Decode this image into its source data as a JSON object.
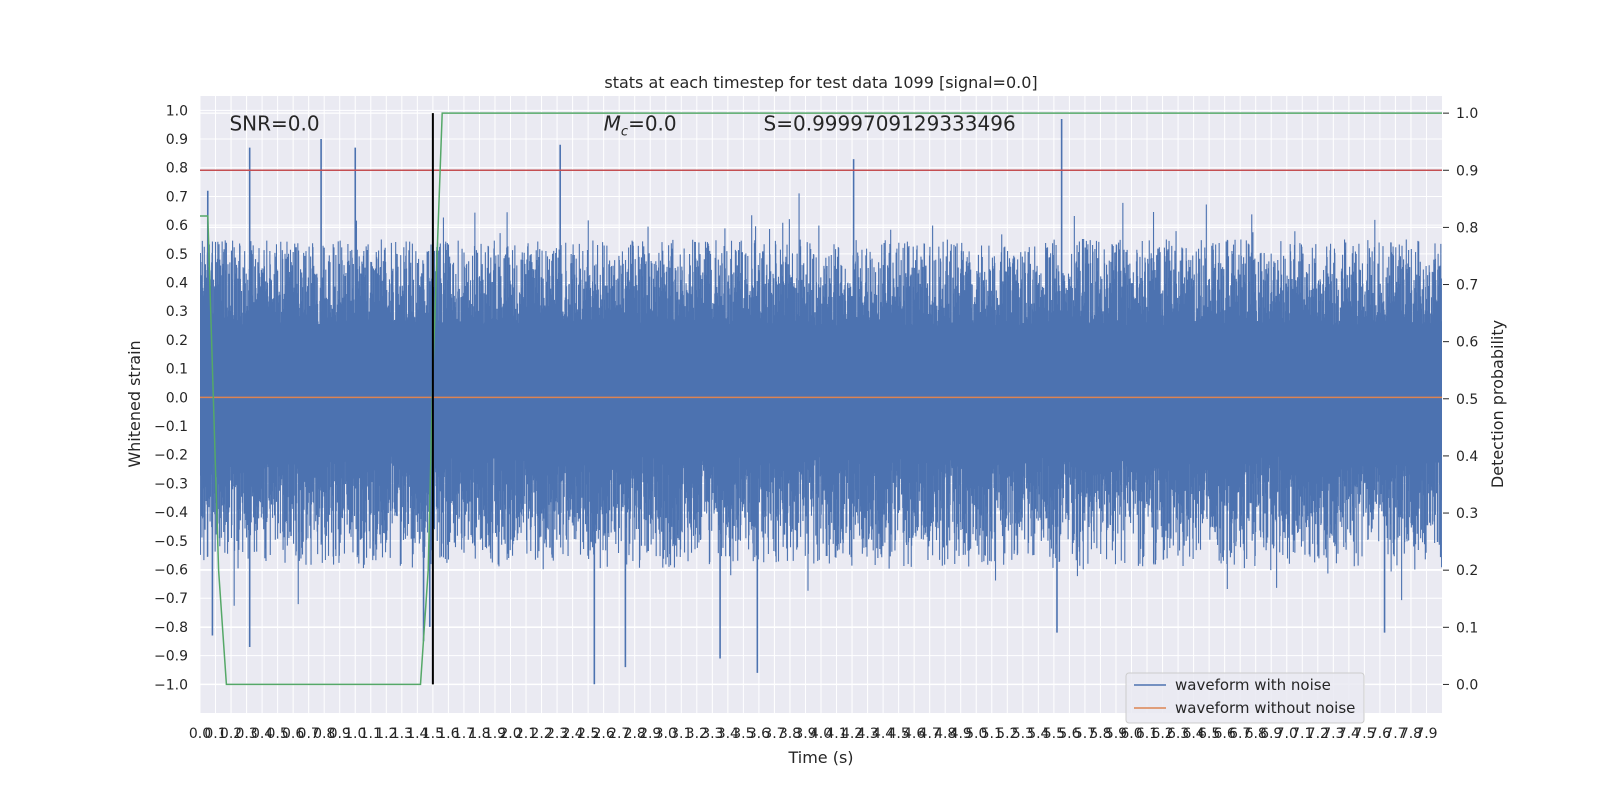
{
  "chart_data": {
    "type": "line",
    "title": "stats at each timestep for test data 1099 [signal=0.0]",
    "xlabel": "Time (s)",
    "ylabel": "Whitened strain",
    "y2label": "Detection probability",
    "xlim": [
      0.0,
      8.0
    ],
    "ylim": [
      -1.1,
      1.05
    ],
    "y2lim": [
      -0.05,
      1.03
    ],
    "xticks": [
      0.0,
      0.1,
      0.2,
      0.3,
      0.4,
      0.5,
      0.6,
      0.7,
      0.8,
      0.9,
      1.0,
      1.1,
      1.2,
      1.3,
      1.4,
      1.5,
      1.6,
      1.7,
      1.8,
      1.9,
      2.0,
      2.1,
      2.2,
      2.3,
      2.4,
      2.5,
      2.6,
      2.7,
      2.8,
      2.9,
      3.0,
      3.1,
      3.2,
      3.3,
      3.4,
      3.5,
      3.6,
      3.7,
      3.8,
      3.9,
      4.0,
      4.1,
      4.2,
      4.3,
      4.4,
      4.5,
      4.6,
      4.7,
      4.8,
      4.9,
      5.0,
      5.1,
      5.2,
      5.3,
      5.4,
      5.5,
      5.6,
      5.7,
      5.8,
      5.9,
      6.0,
      6.1,
      6.2,
      6.3,
      6.4,
      6.5,
      6.6,
      6.7,
      6.8,
      6.9,
      7.0,
      7.1,
      7.2,
      7.3,
      7.4,
      7.5,
      7.6,
      7.7,
      7.8,
      7.9
    ],
    "yticks": [
      -1.0,
      -0.9,
      -0.8,
      -0.7,
      -0.6,
      -0.5,
      -0.4,
      -0.3,
      -0.2,
      -0.1,
      0.0,
      0.1,
      0.2,
      0.3,
      0.4,
      0.5,
      0.6,
      0.7,
      0.8,
      0.9,
      1.0
    ],
    "y2ticks": [
      0.0,
      0.1,
      0.2,
      0.3,
      0.4,
      0.5,
      0.6,
      0.7,
      0.8,
      0.9,
      1.0
    ],
    "annotations": [
      {
        "text": "SNR=0.0",
        "x": 0.19,
        "y": 0.955
      },
      {
        "text": "=0.0",
        "prefix": "M",
        "subscript": "c",
        "x": 2.6,
        "y": 0.955
      },
      {
        "text": "S=0.9999709129333496",
        "x": 3.63,
        "y": 0.955
      }
    ],
    "series": [
      {
        "name": "waveform with noise",
        "color": "#4c72b0",
        "axis": "left",
        "kind": "noise",
        "positive_envelope_typical": [
          0.25,
          0.55
        ],
        "negative_envelope_typical": [
          -0.6,
          -0.2
        ],
        "peaks": [
          [
            0.05,
            0.72
          ],
          [
            0.08,
            -0.83
          ],
          [
            0.32,
            0.87
          ],
          [
            0.32,
            -0.87
          ],
          [
            0.78,
            0.9
          ],
          [
            1.0,
            0.87
          ],
          [
            1.44,
            -0.85
          ],
          [
            1.48,
            -0.8
          ],
          [
            2.32,
            0.88
          ],
          [
            2.54,
            -1.0
          ],
          [
            2.74,
            -0.94
          ],
          [
            3.35,
            -0.91
          ],
          [
            3.59,
            -0.96
          ],
          [
            4.21,
            0.83
          ],
          [
            5.55,
            0.97
          ],
          [
            5.52,
            -0.82
          ],
          [
            7.63,
            -0.82
          ]
        ]
      },
      {
        "name": "waveform without noise",
        "color": "#dd8452",
        "axis": "left",
        "x": [
          0.0,
          8.0
        ],
        "y": [
          0.0,
          0.0
        ]
      },
      {
        "name": "detection probability",
        "color": "#55a868",
        "axis": "right",
        "x": [
          0.0,
          0.05,
          0.12,
          0.17,
          0.2,
          1.42,
          1.47,
          1.5,
          1.56,
          8.0
        ],
        "y": [
          0.82,
          0.82,
          0.2,
          0.0,
          0.0,
          0.0,
          0.2,
          0.55,
          1.0,
          1.0
        ]
      }
    ],
    "threshold": {
      "value": 0.9,
      "axis": "right",
      "color": "#c44e52"
    },
    "vline": {
      "x": 1.5,
      "color": "#000000"
    },
    "legend": {
      "position": "lower-right",
      "entries": [
        "waveform with noise",
        "waveform without noise"
      ]
    }
  }
}
